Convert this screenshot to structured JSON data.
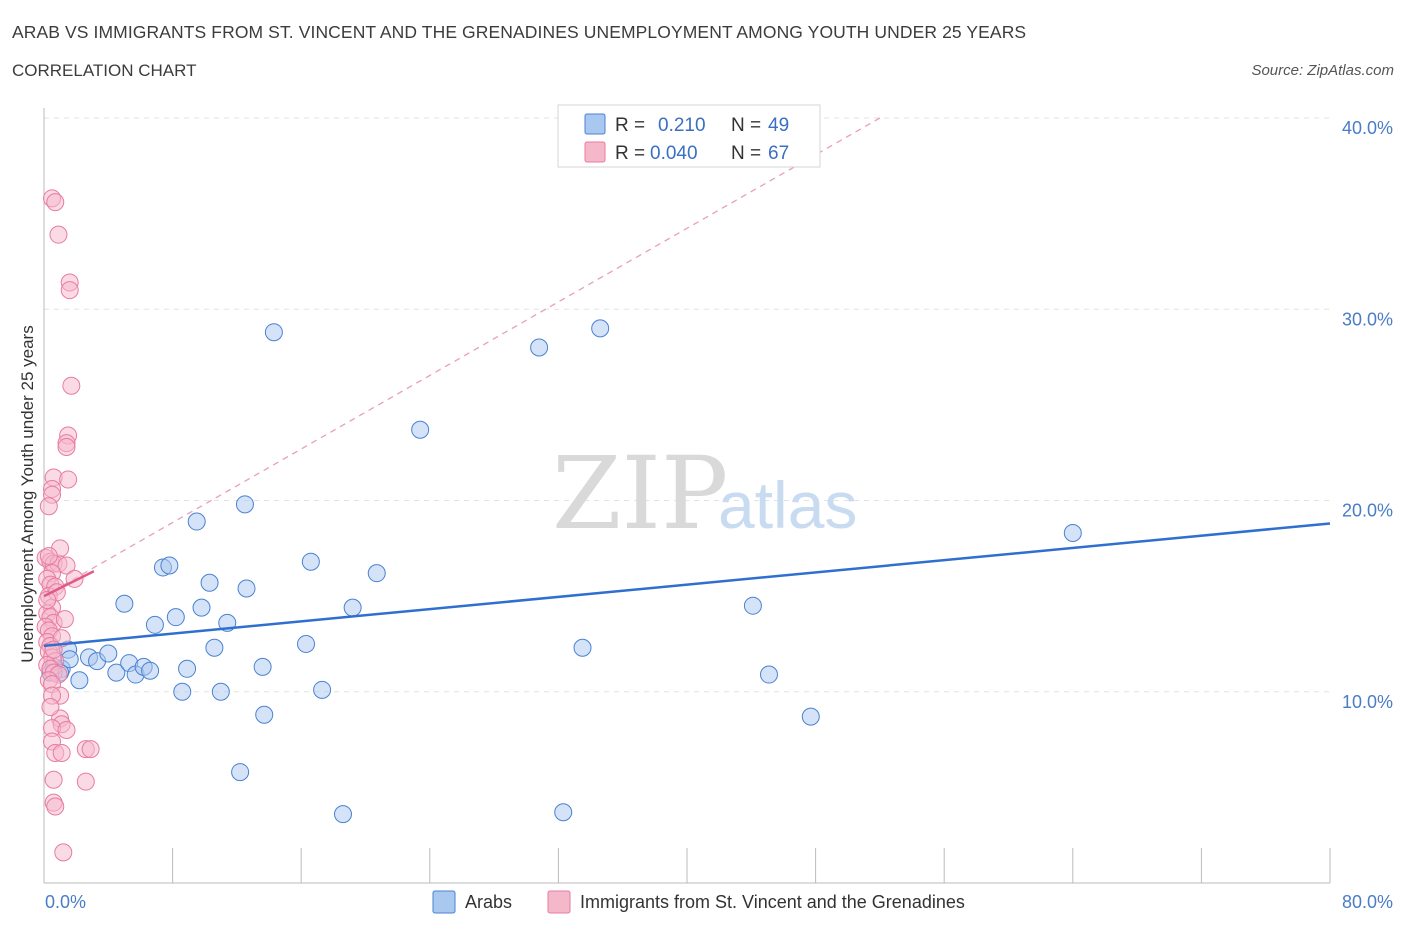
{
  "header": {
    "title": "ARAB VS IMMIGRANTS FROM ST. VINCENT AND THE GRENADINES UNEMPLOYMENT AMONG YOUTH UNDER 25 YEARS",
    "subtitle": "CORRELATION CHART",
    "source": "Source: ZipAtlas.com"
  },
  "watermark": {
    "zip": "ZIP",
    "atlas": "atlas"
  },
  "legend": {
    "rows": [
      {
        "r_label": "R =",
        "r_value": "0.210",
        "n_label": "N =",
        "n_value": "49",
        "color": "#a9c8ef"
      },
      {
        "r_label": "R =",
        "r_value": "0.040",
        "n_label": "N =",
        "n_value": "67",
        "color": "#f5b8cb"
      }
    ]
  },
  "chart_data": {
    "type": "scatter",
    "title": "ARAB VS IMMIGRANTS FROM ST. VINCENT AND THE GRENADINES UNEMPLOYMENT AMONG YOUTH UNDER 25 YEARS",
    "subtitle": "CORRELATION CHART",
    "ylabel": "Unemployment Among Youth under 25 years",
    "xlabel": "",
    "xlim": [
      0,
      80
    ],
    "ylim": [
      0,
      40
    ],
    "x_tick_labels": [
      {
        "value": 0,
        "label": "0.0%"
      },
      {
        "value": 80,
        "label": "80.0%"
      }
    ],
    "y_tick_labels": [
      {
        "value": 10,
        "label": "10.0%"
      },
      {
        "value": 20,
        "label": "20.0%"
      },
      {
        "value": 30,
        "label": "30.0%"
      },
      {
        "value": 40,
        "label": "40.0%"
      }
    ],
    "grid": true,
    "legend_position": "top-center",
    "series": [
      {
        "name": "Arabs",
        "color": "#a9c8ef",
        "stroke": "#4a82d1",
        "trend": {
          "x": [
            0,
            80
          ],
          "y": [
            12.4,
            18.8
          ],
          "color": "#2f6fcf",
          "style": "solid"
        },
        "points": [
          [
            0.6,
            11.3
          ],
          [
            1.1,
            11.2
          ],
          [
            1.5,
            12.2
          ],
          [
            2.2,
            10.6
          ],
          [
            2.8,
            11.8
          ],
          [
            3.3,
            11.6
          ],
          [
            4.0,
            12.0
          ],
          [
            4.5,
            11.0
          ],
          [
            5.0,
            14.6
          ],
          [
            5.3,
            11.5
          ],
          [
            5.7,
            10.9
          ],
          [
            6.2,
            11.3
          ],
          [
            6.6,
            11.1
          ],
          [
            6.9,
            13.5
          ],
          [
            7.4,
            16.5
          ],
          [
            7.8,
            16.6
          ],
          [
            8.2,
            13.9
          ],
          [
            8.6,
            10.0
          ],
          [
            8.9,
            11.2
          ],
          [
            9.5,
            18.9
          ],
          [
            9.8,
            14.4
          ],
          [
            10.3,
            15.7
          ],
          [
            10.6,
            12.3
          ],
          [
            11.0,
            10.0
          ],
          [
            11.4,
            13.6
          ],
          [
            12.2,
            5.8
          ],
          [
            12.5,
            19.8
          ],
          [
            12.6,
            15.4
          ],
          [
            13.6,
            11.3
          ],
          [
            13.7,
            8.8
          ],
          [
            14.3,
            28.8
          ],
          [
            16.3,
            12.5
          ],
          [
            16.6,
            16.8
          ],
          [
            17.3,
            10.1
          ],
          [
            18.6,
            3.6
          ],
          [
            19.2,
            14.4
          ],
          [
            20.7,
            16.2
          ],
          [
            23.4,
            23.7
          ],
          [
            30.8,
            28.0
          ],
          [
            32.3,
            3.7
          ],
          [
            33.5,
            12.3
          ],
          [
            34.6,
            29.0
          ],
          [
            44.1,
            14.5
          ],
          [
            45.1,
            10.9
          ],
          [
            47.7,
            8.7
          ],
          [
            64.0,
            18.3
          ],
          [
            1.0,
            11.0
          ],
          [
            1.6,
            11.7
          ],
          [
            0.4,
            11.0
          ]
        ]
      },
      {
        "name": "Immigrants from St. Vincent and the Grenadines",
        "color": "#f5b8cb",
        "stroke": "#e87ca0",
        "trend": {
          "x": [
            0,
            3.1
          ],
          "y": [
            15.0,
            16.3
          ],
          "color": "#e05a88",
          "style": "solid"
        },
        "trend_extended": {
          "x": [
            0,
            52
          ],
          "y": [
            15.0,
            40.0
          ],
          "color": "#e8a0b8",
          "style": "dashed"
        },
        "points": [
          [
            0.5,
            35.8
          ],
          [
            0.7,
            35.6
          ],
          [
            0.9,
            33.9
          ],
          [
            1.6,
            31.4
          ],
          [
            1.6,
            31.0
          ],
          [
            1.7,
            26.0
          ],
          [
            1.5,
            23.4
          ],
          [
            1.4,
            23.0
          ],
          [
            1.4,
            22.8
          ],
          [
            0.6,
            21.2
          ],
          [
            1.5,
            21.1
          ],
          [
            0.5,
            20.6
          ],
          [
            0.5,
            20.3
          ],
          [
            0.3,
            19.7
          ],
          [
            0.1,
            17.0
          ],
          [
            0.4,
            16.8
          ],
          [
            0.6,
            16.7
          ],
          [
            0.9,
            16.7
          ],
          [
            1.0,
            17.5
          ],
          [
            1.4,
            16.6
          ],
          [
            0.5,
            16.2
          ],
          [
            0.2,
            15.9
          ],
          [
            0.4,
            15.6
          ],
          [
            0.7,
            15.5
          ],
          [
            1.9,
            15.9
          ],
          [
            0.3,
            15.0
          ],
          [
            0.5,
            14.4
          ],
          [
            0.2,
            14.1
          ],
          [
            0.4,
            13.9
          ],
          [
            0.6,
            13.6
          ],
          [
            1.3,
            13.8
          ],
          [
            0.1,
            13.4
          ],
          [
            0.3,
            13.2
          ],
          [
            0.5,
            12.9
          ],
          [
            0.2,
            12.6
          ],
          [
            0.4,
            12.4
          ],
          [
            1.1,
            12.8
          ],
          [
            0.3,
            12.1
          ],
          [
            0.5,
            11.8
          ],
          [
            0.7,
            11.6
          ],
          [
            0.2,
            11.4
          ],
          [
            0.4,
            11.2
          ],
          [
            0.6,
            11.0
          ],
          [
            0.9,
            10.9
          ],
          [
            0.3,
            10.6
          ],
          [
            0.5,
            10.4
          ],
          [
            1.0,
            9.8
          ],
          [
            0.5,
            9.8
          ],
          [
            1.0,
            8.6
          ],
          [
            1.1,
            8.3
          ],
          [
            0.5,
            8.1
          ],
          [
            1.4,
            8.0
          ],
          [
            0.5,
            7.4
          ],
          [
            2.6,
            7.0
          ],
          [
            2.9,
            7.0
          ],
          [
            0.7,
            6.8
          ],
          [
            1.1,
            6.8
          ],
          [
            0.6,
            5.4
          ],
          [
            2.6,
            5.3
          ],
          [
            0.6,
            4.2
          ],
          [
            0.7,
            4.0
          ],
          [
            1.2,
            1.6
          ],
          [
            0.3,
            17.1
          ],
          [
            0.8,
            15.2
          ],
          [
            0.2,
            14.8
          ],
          [
            0.6,
            12.2
          ],
          [
            0.4,
            9.2
          ]
        ]
      }
    ]
  }
}
